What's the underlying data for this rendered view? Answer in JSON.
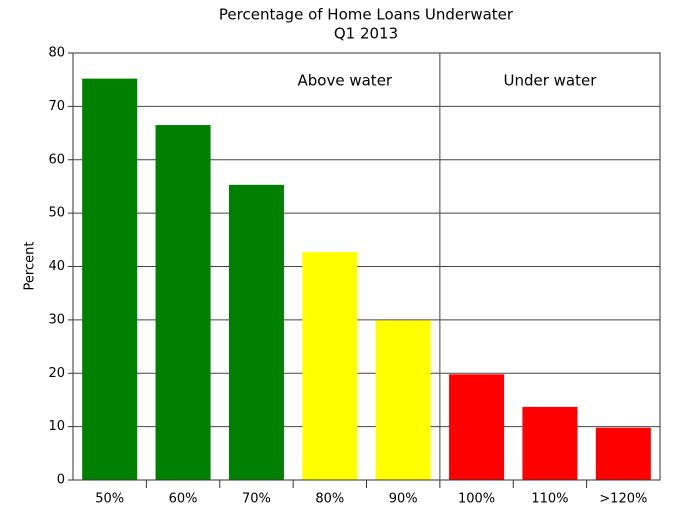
{
  "chart_data": {
    "type": "bar",
    "title": "Percentage of Home Loans Underwater",
    "subtitle": "Q1 2013",
    "y_label": "Percent",
    "categories": [
      "50%",
      "60%",
      "70%",
      "80%",
      "90%",
      "100%",
      "110%",
      ">120%"
    ],
    "values": [
      75.2,
      66.5,
      55.3,
      42.7,
      29.9,
      19.8,
      13.7,
      9.8
    ],
    "colors": [
      "#008000",
      "#008000",
      "#008000",
      "#ffff00",
      "#ffff00",
      "#ff0000",
      "#ff0000",
      "#ff0000"
    ],
    "annotations": [
      "Above water",
      "Under water"
    ],
    "ylim": [
      0,
      80
    ],
    "yticks": [
      0,
      10,
      20,
      30,
      40,
      50,
      60,
      70,
      80
    ],
    "grid": true
  }
}
